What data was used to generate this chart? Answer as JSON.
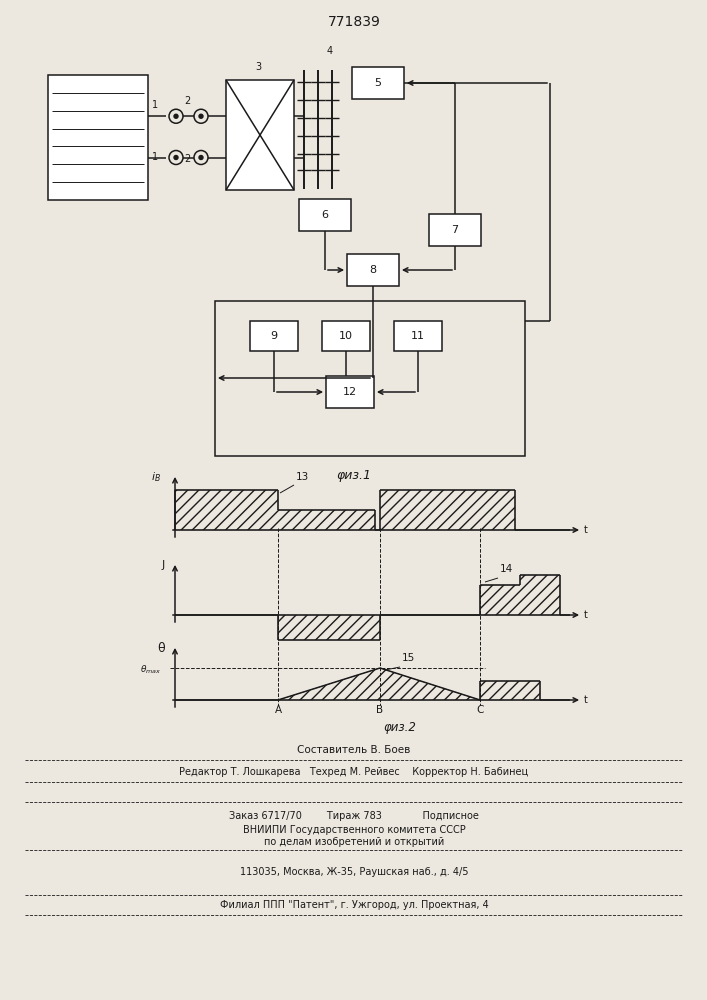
{
  "title": "771839",
  "fig1_label": "φиз.1",
  "fig2_label": "φиз.2",
  "footer_lines": [
    "Составитель В. Боев",
    "Редактор Т. Лошкарева   Техред М. Рейвес    Корректор Н. Бабинец",
    "Заказ 6717/70        Тираж 783             Подписное",
    "ВНИИПИ Государственного комитета СССР",
    "по делам изобретений и открытий",
    "113035, Москва, Ж-35, Раушская наб., д. 4/5",
    "Филиал ППП \"Патент\", г. Ужгород, ул. Проектная, 4"
  ],
  "bg_color": "#ede8df",
  "line_color": "#1a1a1a"
}
